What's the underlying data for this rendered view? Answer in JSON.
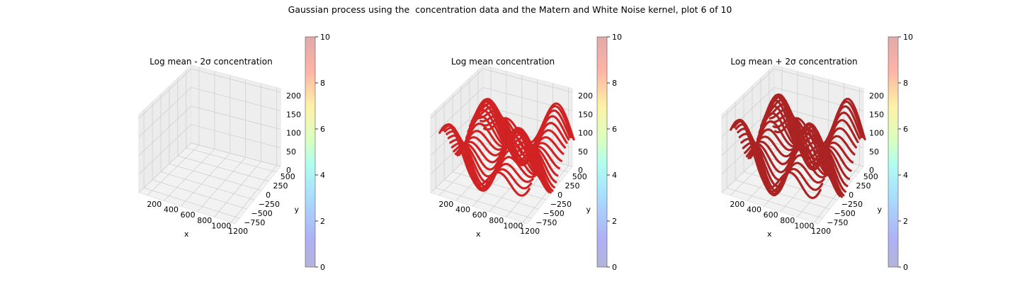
{
  "figure": {
    "title": "Gaussian process using the  concentration data and the Matern and White Noise kernel, plot 6 of 10"
  },
  "colors": {
    "surface_mid": "#cc0000",
    "surface_upper": "#a00000",
    "pane": "#f2f2f2",
    "grid": "#d0d0d0"
  },
  "chart_data": [
    {
      "type": "scatter",
      "subtype": "3d",
      "title": "Log mean - 2σ concentration",
      "xlabel": "x",
      "ylabel": "y",
      "zlabel": "",
      "xticks": [
        "200",
        "400",
        "600",
        "800",
        "1000",
        "1200"
      ],
      "yticks": [
        "−750",
        "−500",
        "−250",
        "0",
        "250",
        "500"
      ],
      "zticks": [
        "0",
        "50",
        "100",
        "150",
        "200"
      ],
      "xlim": [
        100,
        1250
      ],
      "ylim": [
        -900,
        650
      ],
      "zlim": [
        0,
        210
      ],
      "colorbar": {
        "ticks": [
          "0",
          "2",
          "4",
          "6",
          "8",
          "10"
        ],
        "range": [
          0,
          10
        ],
        "colormap": "jet"
      },
      "points": "none"
    },
    {
      "type": "scatter",
      "subtype": "3d",
      "title": "Log mean concentration",
      "xlabel": "x",
      "ylabel": "y",
      "zlabel": "",
      "xticks": [
        "200",
        "400",
        "600",
        "800",
        "1000",
        "1200"
      ],
      "yticks": [
        "−750",
        "−500",
        "−250",
        "0",
        "250",
        "500"
      ],
      "zticks": [
        "0",
        "50",
        "100",
        "150",
        "200"
      ],
      "xlim": [
        100,
        1250
      ],
      "ylim": [
        -900,
        650
      ],
      "zlim": [
        0,
        210
      ],
      "colorbar": {
        "ticks": [
          "0",
          "2",
          "4",
          "6",
          "8",
          "10"
        ],
        "range": [
          0,
          10
        ],
        "colormap": "jet"
      },
      "points": "dense red point surface (values near top of color range)",
      "color": "#cc0000"
    },
    {
      "type": "scatter",
      "subtype": "3d",
      "title": "Log mean + 2σ concentration",
      "xlabel": "x",
      "ylabel": "y",
      "zlabel": "",
      "xticks": [
        "200",
        "400",
        "600",
        "800",
        "1000",
        "1200"
      ],
      "yticks": [
        "−750",
        "−500",
        "−250",
        "0",
        "250",
        "500"
      ],
      "zticks": [
        "0",
        "50",
        "100",
        "150",
        "200"
      ],
      "xlim": [
        100,
        1250
      ],
      "ylim": [
        -900,
        650
      ],
      "zlim": [
        0,
        210
      ],
      "colorbar": {
        "ticks": [
          "0",
          "2",
          "4",
          "6",
          "8",
          "10"
        ],
        "range": [
          0,
          10
        ],
        "colormap": "jet"
      },
      "points": "dense dark-red point surface (values at top of color range)",
      "color": "#a00000"
    }
  ]
}
